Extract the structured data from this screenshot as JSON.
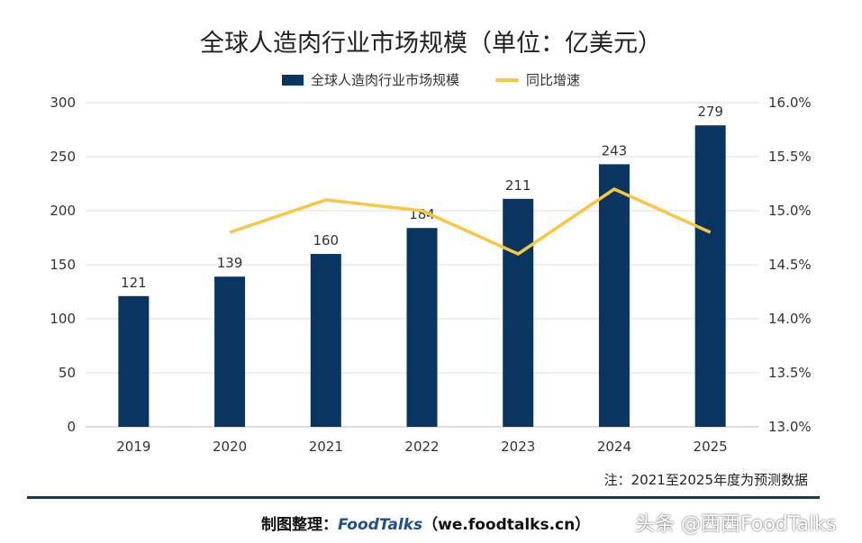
{
  "chart_data": {
    "type": "bar+line",
    "title": "全球人造肉行业市场规模（单位：亿美元）",
    "categories": [
      "2019",
      "2020",
      "2021",
      "2022",
      "2023",
      "2024",
      "2025"
    ],
    "series": [
      {
        "name": "全球人造肉行业市场规模",
        "type": "bar",
        "axis": "left",
        "values": [
          121,
          139,
          160,
          184,
          211,
          243,
          279
        ],
        "color": "#0b3561"
      },
      {
        "name": "同比增速",
        "type": "line",
        "axis": "right",
        "values": [
          null,
          14.8,
          15.1,
          15.0,
          14.6,
          15.2,
          14.8
        ],
        "color": "#f6c842"
      }
    ],
    "ylim": [
      0,
      300
    ],
    "yticks": [
      "0",
      "50",
      "100",
      "150",
      "200",
      "250",
      "300"
    ],
    "y2lim": [
      13.0,
      16.0
    ],
    "y2ticks": [
      "13.0%",
      "13.5%",
      "14.0%",
      "14.5%",
      "15.0%",
      "15.5%",
      "16.0%"
    ],
    "grid": true,
    "legend": "top"
  },
  "note": "注：2021至2025年度为预测数据",
  "credit": {
    "label": "制图整理：",
    "brand": "FoodTalks",
    "url": "（we.foodtalks.cn）"
  },
  "watermark": "头条 @西西FoodTalks"
}
